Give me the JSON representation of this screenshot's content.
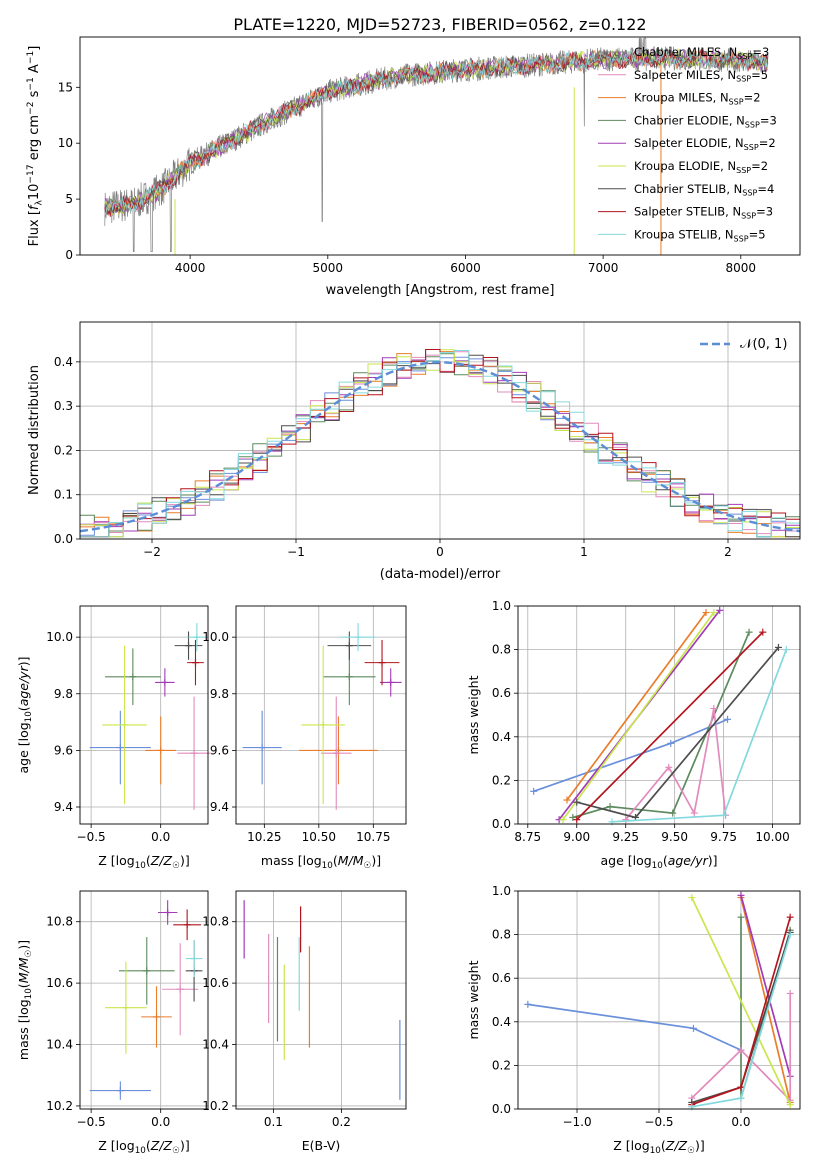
{
  "title": "PLATE=1220, MJD=52723, FIBERID=0562, z=0.122",
  "series_colors": [
    "#6a8fdb",
    "#ea7d2a",
    "#5d8a5e",
    "#a23bb6",
    "#e28bbd",
    "#c9e64e",
    "#4d4d4d",
    "#b3151e",
    "#84d9de"
  ],
  "spectrum_color": "#7f7f7f",
  "chart_data": [
    {
      "id": "spectrum",
      "type": "line",
      "xlabel": "wavelength [Angstrom, rest frame]",
      "ylabel": "Flux [fλ10⁻¹⁷ erg cm⁻² s⁻¹ A⁻¹]",
      "xlim": [
        3200,
        8430
      ],
      "ylim": [
        0,
        19.5
      ],
      "xticks": [
        4000,
        5000,
        6000,
        7000,
        8000
      ],
      "yticks": [
        0,
        5,
        10,
        15
      ],
      "x_start": 3380,
      "x_end": 8200,
      "legend_position": "top-right",
      "legend": [
        {
          "label": "Chabrier MILES, N",
          "sub": "SSP",
          "val": "=3",
          "color": "#7f7f7f"
        },
        {
          "label": "Salpeter MILES, N",
          "sub": "SSP",
          "val": "=5",
          "color": "#e28bbd"
        },
        {
          "label": "Kroupa MILES, N",
          "sub": "SSP",
          "val": "=2",
          "color": "#ea7d2a"
        },
        {
          "label": "Chabrier ELODIE, N",
          "sub": "SSP",
          "val": "=3",
          "color": "#5d8a5e"
        },
        {
          "label": "Salpeter ELODIE, N",
          "sub": "SSP",
          "val": "=2",
          "color": "#a23bb6"
        },
        {
          "label": "Kroupa ELODIE, N",
          "sub": "SSP",
          "val": "=2",
          "color": "#c9e64e"
        },
        {
          "label": "Chabrier STELIB, N",
          "sub": "SSP",
          "val": "=4",
          "color": "#4d4d4d"
        },
        {
          "label": "Salpeter STELIB, N",
          "sub": "SSP",
          "val": "=3",
          "color": "#b3151e"
        },
        {
          "label": "Kroupa STELIB, N",
          "sub": "SSP",
          "val": "=5",
          "color": "#84d9de"
        }
      ],
      "continuum": [
        [
          3380,
          4.2
        ],
        [
          3600,
          4.6
        ],
        [
          3800,
          6.0
        ],
        [
          4000,
          8.2
        ],
        [
          4300,
          10.2
        ],
        [
          4600,
          12.2
        ],
        [
          5000,
          14.6
        ],
        [
          5500,
          16.0
        ],
        [
          6000,
          16.6
        ],
        [
          6500,
          17.0
        ],
        [
          7000,
          17.5
        ],
        [
          7500,
          17.6
        ],
        [
          8000,
          17.4
        ],
        [
          8200,
          17.1
        ]
      ]
    },
    {
      "id": "residuals",
      "type": "step-histogram",
      "xlabel": "(data-model)/error",
      "ylabel": "Normed distribution",
      "xlim": [
        -2.5,
        2.5
      ],
      "ylim": [
        0,
        0.49
      ],
      "xticks": [
        -2,
        -1,
        0,
        1,
        2
      ],
      "xtick_labels": [
        "−2",
        "−1",
        "0",
        "1",
        "2"
      ],
      "yticks": [
        0,
        0.1,
        0.2,
        0.3,
        0.4
      ],
      "grid": true,
      "legend_position": "top-right",
      "legend_label": "𝒩(0, 1)",
      "gaussian": {
        "mean": 0,
        "sigma": 1
      },
      "bin_width": 0.1
    },
    {
      "id": "age_vs_Z",
      "type": "errorbar",
      "xlabel": "Z [log₁₀(Z/Z☉)]",
      "ylabel": "age  [log₁₀(age/yr)]",
      "xlim": [
        -0.58,
        0.34
      ],
      "ylim": [
        9.34,
        10.11
      ],
      "xticks": [
        -0.5,
        0.0
      ],
      "xtick_labels": [
        "−0.5",
        "0.0"
      ],
      "yticks": [
        9.4,
        9.6,
        9.8,
        10.0
      ],
      "grid": true,
      "points": [
        {
          "x": -0.29,
          "y": 9.61,
          "xerr": 0.22,
          "yerr": 0.13,
          "color": "#6a8fdb"
        },
        {
          "x": 0.0,
          "y": 9.6,
          "xerr": 0.11,
          "yerr": 0.12,
          "color": "#ea7d2a"
        },
        {
          "x": -0.2,
          "y": 9.86,
          "xerr": 0.2,
          "yerr": 0.1,
          "color": "#5d8a5e"
        },
        {
          "x": 0.03,
          "y": 9.84,
          "xerr": 0.07,
          "yerr": 0.05,
          "color": "#a23bb6"
        },
        {
          "x": 0.24,
          "y": 9.59,
          "xerr": 0.12,
          "yerr": 0.2,
          "color": "#e28bbd"
        },
        {
          "x": -0.26,
          "y": 9.69,
          "xerr": 0.16,
          "yerr": 0.28,
          "color": "#c9e64e"
        },
        {
          "x": 0.2,
          "y": 9.97,
          "xerr": 0.1,
          "yerr": 0.05,
          "color": "#4d4d4d"
        },
        {
          "x": 0.25,
          "y": 9.91,
          "xerr": 0.06,
          "yerr": 0.08,
          "color": "#b3151e"
        },
        {
          "x": 0.26,
          "y": 10.0,
          "xerr": 0.06,
          "yerr": 0.05,
          "color": "#84d9de"
        }
      ]
    },
    {
      "id": "age_vs_mass",
      "type": "errorbar",
      "xlabel": "mass [log₁₀(M/M☉)]",
      "ylabel": "",
      "xlim": [
        10.12,
        10.9
      ],
      "ylim": [
        9.34,
        10.11
      ],
      "xticks": [
        10.25,
        10.5,
        10.75
      ],
      "yticks": [
        9.4,
        9.6,
        9.8,
        10.0
      ],
      "grid": true,
      "points": [
        {
          "x": 10.24,
          "y": 9.61,
          "xerr": 0.09,
          "yerr": 0.13,
          "color": "#6a8fdb"
        },
        {
          "x": 10.59,
          "y": 9.6,
          "xerr": 0.18,
          "yerr": 0.12,
          "color": "#ea7d2a"
        },
        {
          "x": 10.64,
          "y": 9.86,
          "xerr": 0.12,
          "yerr": 0.1,
          "color": "#5d8a5e"
        },
        {
          "x": 10.83,
          "y": 9.84,
          "xerr": 0.05,
          "yerr": 0.05,
          "color": "#a23bb6"
        },
        {
          "x": 10.58,
          "y": 9.59,
          "xerr": 0.07,
          "yerr": 0.2,
          "color": "#e28bbd"
        },
        {
          "x": 10.52,
          "y": 9.69,
          "xerr": 0.1,
          "yerr": 0.28,
          "color": "#c9e64e"
        },
        {
          "x": 10.64,
          "y": 9.97,
          "xerr": 0.1,
          "yerr": 0.05,
          "color": "#4d4d4d"
        },
        {
          "x": 10.79,
          "y": 9.91,
          "xerr": 0.08,
          "yerr": 0.08,
          "color": "#b3151e"
        },
        {
          "x": 10.68,
          "y": 10.0,
          "xerr": 0.08,
          "yerr": 0.05,
          "color": "#84d9de"
        }
      ]
    },
    {
      "id": "weight_vs_age",
      "type": "line",
      "xlabel": "age  [log₁₀(age/yr)]",
      "ylabel": "mass weight",
      "xlim": [
        8.7,
        10.14
      ],
      "ylim": [
        0,
        1
      ],
      "xticks": [
        8.75,
        9.0,
        9.25,
        9.5,
        9.75,
        10.0
      ],
      "yticks": [
        0,
        0.2,
        0.4,
        0.6,
        0.8,
        1.0
      ],
      "grid": true,
      "series": [
        {
          "color": "#6a8fdb",
          "x": [
            8.78,
            9.48,
            9.77
          ],
          "y": [
            0.15,
            0.37,
            0.48
          ]
        },
        {
          "color": "#ea7d2a",
          "x": [
            8.95,
            9.66
          ],
          "y": [
            0.11,
            0.97
          ]
        },
        {
          "color": "#5d8a5e",
          "x": [
            8.98,
            9.17,
            9.49,
            9.88
          ],
          "y": [
            0.03,
            0.08,
            0.05,
            0.88
          ]
        },
        {
          "color": "#a23bb6",
          "x": [
            8.91,
            9.73
          ],
          "y": [
            0.02,
            0.98
          ]
        },
        {
          "color": "#e28bbd",
          "x": [
            9.25,
            9.47,
            9.6,
            9.7,
            9.76
          ],
          "y": [
            0.02,
            0.26,
            0.05,
            0.53,
            0.04
          ]
        },
        {
          "color": "#c9e64e",
          "x": [
            8.93,
            9.7
          ],
          "y": [
            0.02,
            0.97
          ]
        },
        {
          "color": "#4d4d4d",
          "x": [
            9.0,
            9.3,
            10.03
          ],
          "y": [
            0.1,
            0.03,
            0.81
          ]
        },
        {
          "color": "#b3151e",
          "x": [
            9.0,
            9.95
          ],
          "y": [
            0.02,
            0.88
          ]
        },
        {
          "color": "#84d9de",
          "x": [
            9.18,
            9.75,
            10.07
          ],
          "y": [
            0.01,
            0.04,
            0.8
          ]
        }
      ]
    },
    {
      "id": "mass_vs_Z",
      "type": "errorbar",
      "xlabel": "Z [log₁₀(Z/Z☉)]",
      "ylabel": "mass [log₁₀(M/M☉)]",
      "xlim": [
        -0.58,
        0.34
      ],
      "ylim": [
        10.19,
        10.9
      ],
      "xticks": [
        -0.5,
        0.0
      ],
      "xtick_labels": [
        "−0.5",
        "0.0"
      ],
      "yticks": [
        10.2,
        10.4,
        10.6,
        10.8
      ],
      "grid": true,
      "points": [
        {
          "x": -0.29,
          "y": 10.25,
          "xerr": 0.22,
          "yerr": 0.03,
          "color": "#6a8fdb"
        },
        {
          "x": -0.03,
          "y": 10.49,
          "xerr": 0.11,
          "yerr": 0.1,
          "color": "#ea7d2a"
        },
        {
          "x": -0.1,
          "y": 10.64,
          "xerr": 0.2,
          "yerr": 0.11,
          "color": "#5d8a5e"
        },
        {
          "x": 0.05,
          "y": 10.83,
          "xerr": 0.07,
          "yerr": 0.04,
          "color": "#a23bb6"
        },
        {
          "x": 0.14,
          "y": 10.58,
          "xerr": 0.13,
          "yerr": 0.15,
          "color": "#e28bbd"
        },
        {
          "x": -0.25,
          "y": 10.52,
          "xerr": 0.15,
          "yerr": 0.15,
          "color": "#c9e64e"
        },
        {
          "x": 0.24,
          "y": 10.64,
          "xerr": 0.06,
          "yerr": 0.1,
          "color": "#4d4d4d"
        },
        {
          "x": 0.19,
          "y": 10.79,
          "xerr": 0.1,
          "yerr": 0.05,
          "color": "#b3151e"
        },
        {
          "x": 0.24,
          "y": 10.68,
          "xerr": 0.06,
          "yerr": 0.06,
          "color": "#84d9de"
        }
      ]
    },
    {
      "id": "mass_vs_ebv",
      "type": "vertical-errorbar",
      "xlabel": "E(B-V)",
      "ylabel": "",
      "xlim": [
        0.045,
        0.295
      ],
      "ylim": [
        10.19,
        10.9
      ],
      "xticks": [
        0.1,
        0.2
      ],
      "yticks": [
        10.2,
        10.4,
        10.6,
        10.8
      ],
      "grid": true,
      "points": [
        {
          "x": 0.057,
          "y1": 10.68,
          "y2": 10.87,
          "color": "#a23bb6"
        },
        {
          "x": 0.093,
          "y1": 10.47,
          "y2": 10.76,
          "color": "#e28bbd"
        },
        {
          "x": 0.106,
          "y1": 10.41,
          "y2": 10.75,
          "color": "#5d8a5e"
        },
        {
          "x": 0.116,
          "y1": 10.35,
          "y2": 10.66,
          "color": "#c9e64e"
        },
        {
          "x": 0.138,
          "y1": 10.51,
          "y2": 10.75,
          "color": "#84d9de"
        },
        {
          "x": 0.14,
          "y1": 10.7,
          "y2": 10.85,
          "color": "#b3151e"
        },
        {
          "x": 0.153,
          "y1": 10.39,
          "y2": 10.72,
          "color": "#ea7d2a"
        },
        {
          "x": 0.286,
          "y1": 10.22,
          "y2": 10.48,
          "color": "#6a8fdb"
        }
      ]
    },
    {
      "id": "weight_vs_Z",
      "type": "line",
      "xlabel": "Z [log₁₀(Z/Z☉)]",
      "ylabel": "mass weight",
      "xlim": [
        -1.36,
        0.36
      ],
      "ylim": [
        0,
        1
      ],
      "xticks": [
        -1.0,
        -0.5,
        0.0
      ],
      "xtick_labels": [
        "−1.0",
        "−0.5",
        "0.0"
      ],
      "yticks": [
        0,
        0.2,
        0.4,
        0.6,
        0.8,
        1.0
      ],
      "grid": true,
      "series": [
        {
          "color": "#6a8fdb",
          "x": [
            -1.3,
            -0.29,
            0.0
          ],
          "y": [
            0.48,
            0.37,
            0.27
          ]
        },
        {
          "color": "#ea7d2a",
          "x": [
            0.0,
            0.3
          ],
          "y": [
            0.97,
            0.03
          ]
        },
        {
          "color": "#5d8a5e",
          "x": [
            0.0,
            0.0,
            0.3
          ],
          "y": [
            0.88,
            0.05,
            0.82
          ]
        },
        {
          "color": "#a23bb6",
          "x": [
            0.0,
            0.3
          ],
          "y": [
            0.98,
            0.15
          ]
        },
        {
          "color": "#e28bbd",
          "x": [
            -0.3,
            0.0,
            0.3,
            0.3
          ],
          "y": [
            0.05,
            0.27,
            0.04,
            0.53
          ]
        },
        {
          "color": "#c9e64e",
          "x": [
            -0.3,
            0.3
          ],
          "y": [
            0.97,
            0.02
          ]
        },
        {
          "color": "#4d4d4d",
          "x": [
            -0.3,
            0.0,
            0.3
          ],
          "y": [
            0.03,
            0.1,
            0.81
          ]
        },
        {
          "color": "#b3151e",
          "x": [
            -0.3,
            0.0,
            0.3
          ],
          "y": [
            0.02,
            0.1,
            0.88
          ]
        },
        {
          "color": "#84d9de",
          "x": [
            -0.3,
            0.0,
            0.3
          ],
          "y": [
            0.01,
            0.05,
            0.8
          ]
        }
      ]
    }
  ]
}
